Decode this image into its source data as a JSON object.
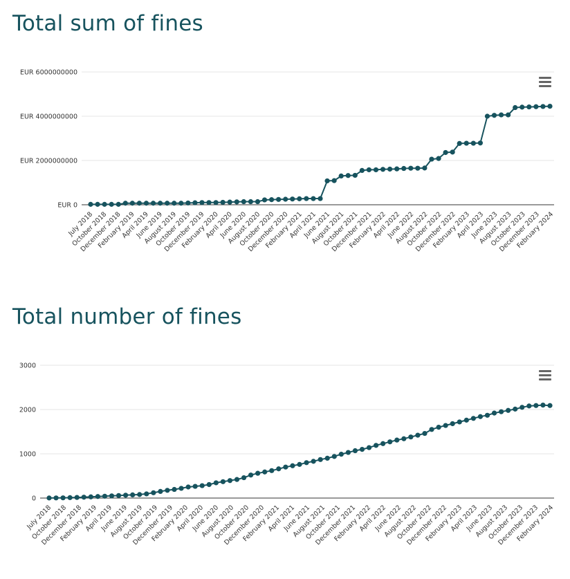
{
  "charts": {
    "sum": {
      "title": "Total sum of fines",
      "menu_icon": "hamburger-menu-icon"
    },
    "count": {
      "title": "Total number of fines",
      "menu_icon": "hamburger-menu-icon"
    }
  },
  "colors": {
    "series": "#17535e",
    "title": "#17535e",
    "grid": "#e6e6e6",
    "axis": "#333333"
  },
  "chart_data": [
    {
      "type": "line",
      "title": "Total sum of fines",
      "ylim": [
        0,
        6000000000
      ],
      "grid": true,
      "y_ticks": [
        {
          "value": 0,
          "label": "EUR 0"
        },
        {
          "value": 2000000000,
          "label": "EUR 2000000000"
        },
        {
          "value": 4000000000,
          "label": "EUR 4000000000"
        },
        {
          "value": 6000000000,
          "label": "EUR 6000000000"
        }
      ],
      "x_tick_labels": [
        "July 2018",
        "October 2018",
        "December 2018",
        "February 2019",
        "April 2019",
        "June 2019",
        "August 2019",
        "October 2019",
        "December 2019",
        "February 2020",
        "April 2020",
        "June 2020",
        "August 2020",
        "October 2020",
        "December 2020",
        "February 2021",
        "April 2021",
        "June 2021",
        "August 2021",
        "October 2021",
        "December 2021",
        "February 2022",
        "April 2022",
        "June 2022",
        "August 2022",
        "October 2022",
        "December 2022",
        "February 2023",
        "April 2023",
        "June 2023",
        "August 2023",
        "October 2023",
        "December 2023",
        "February 2024"
      ],
      "series": [
        {
          "values": [
            20000000,
            20000000,
            20000000,
            20000000,
            20000000,
            70000000,
            70000000,
            70000000,
            70000000,
            70000000,
            70000000,
            70000000,
            70000000,
            70000000,
            80000000,
            90000000,
            100000000,
            100000000,
            100000000,
            110000000,
            120000000,
            130000000,
            140000000,
            140000000,
            140000000,
            220000000,
            230000000,
            240000000,
            250000000,
            260000000,
            270000000,
            280000000,
            280000000,
            280000000,
            1080000000,
            1090000000,
            1300000000,
            1320000000,
            1330000000,
            1550000000,
            1580000000,
            1580000000,
            1600000000,
            1610000000,
            1620000000,
            1640000000,
            1650000000,
            1650000000,
            1660000000,
            2060000000,
            2090000000,
            2360000000,
            2380000000,
            2770000000,
            2780000000,
            2780000000,
            2790000000,
            4000000000,
            4040000000,
            4060000000,
            4060000000,
            4390000000,
            4410000000,
            4420000000,
            4430000000,
            4440000000,
            4450000000
          ]
        }
      ]
    },
    {
      "type": "line",
      "title": "Total number of fines",
      "ylim": [
        0,
        3000
      ],
      "grid": true,
      "y_ticks": [
        {
          "value": 0,
          "label": "0"
        },
        {
          "value": 1000,
          "label": "1000"
        },
        {
          "value": 2000,
          "label": "2000"
        },
        {
          "value": 3000,
          "label": "3000"
        }
      ],
      "x_tick_labels": [
        "July 2018",
        "October 2018",
        "December 2018",
        "February 2019",
        "April 2019",
        "June 2019",
        "August 2019",
        "October 2019",
        "December 2019",
        "February 2020",
        "April 2020",
        "June 2020",
        "August 2020",
        "October 2020",
        "December 2020",
        "February 2021",
        "April 2021",
        "June 2021",
        "August 2021",
        "October 2021",
        "December 2021",
        "February 2022",
        "April 2022",
        "June 2022",
        "August 2022",
        "October 2022",
        "December 2022",
        "February 2023",
        "April 2023",
        "June 2023",
        "August 2023",
        "October 2023",
        "December 2023",
        "February 2024"
      ],
      "series": [
        {
          "values": [
            2,
            3,
            5,
            10,
            14,
            20,
            27,
            35,
            42,
            50,
            57,
            65,
            72,
            80,
            95,
            120,
            150,
            175,
            195,
            220,
            250,
            265,
            280,
            305,
            345,
            370,
            395,
            420,
            460,
            520,
            560,
            590,
            620,
            660,
            700,
            730,
            760,
            800,
            830,
            870,
            900,
            940,
            990,
            1030,
            1070,
            1100,
            1140,
            1190,
            1230,
            1270,
            1310,
            1340,
            1380,
            1420,
            1460,
            1550,
            1600,
            1640,
            1680,
            1720,
            1760,
            1800,
            1840,
            1870,
            1920,
            1950,
            1980,
            2010,
            2050,
            2080,
            2090,
            2100,
            2090
          ]
        }
      ]
    }
  ]
}
